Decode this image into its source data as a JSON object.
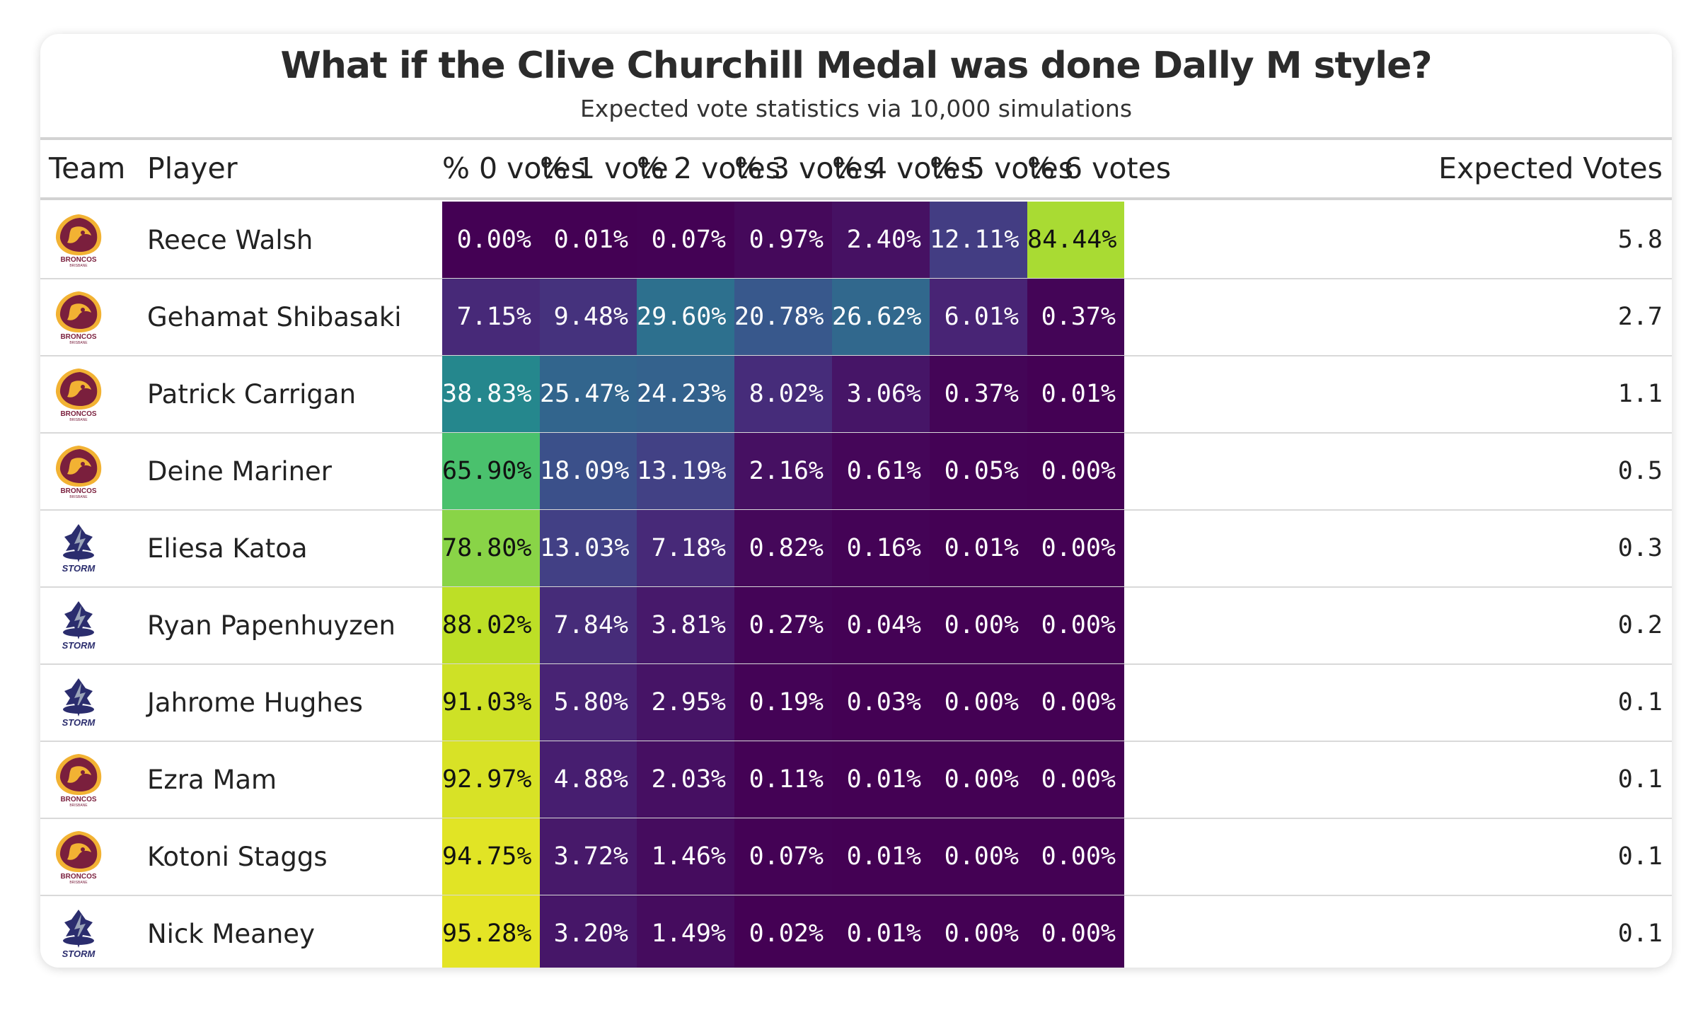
{
  "title": "What if the Clive Churchill Medal was done Dally M style?",
  "subtitle": "Expected vote statistics via 10,000 simulations",
  "colors": {
    "card_bg": "#ffffff",
    "rule": "#d2d2d2",
    "broncos_maroon": "#7a1f3d",
    "broncos_gold": "#f2b233",
    "storm_navy": "#2b2d6e"
  },
  "chart_data": {
    "type": "table",
    "title": "What if the Clive Churchill Medal was done Dally M style?",
    "subtitle": "Expected vote statistics via 10,000 simulations",
    "colormap": "viridis",
    "columns": [
      "Team",
      "Player",
      "% 0 votes",
      "% 1 vote",
      "% 2 votes",
      "% 3 votes",
      "% 4 votes",
      "% 5 votes",
      "% 6 votes",
      "Expected Votes"
    ],
    "rows": [
      {
        "team": "BRONCOS",
        "team_sub": "BRISBANE",
        "team_icon": "broncos-logo-icon",
        "player": "Reece Walsh",
        "pct": [
          "0.00%",
          "0.01%",
          "0.07%",
          "0.97%",
          "2.40%",
          "12.11%",
          "84.44%"
        ],
        "vals": [
          0.0,
          0.01,
          0.07,
          0.97,
          2.4,
          12.11,
          84.44
        ],
        "expected": "5.8"
      },
      {
        "team": "BRONCOS",
        "team_sub": "BRISBANE",
        "team_icon": "broncos-logo-icon",
        "player": "Gehamat Shibasaki",
        "pct": [
          "7.15%",
          "9.48%",
          "29.60%",
          "20.78%",
          "26.62%",
          "6.01%",
          "0.37%"
        ],
        "vals": [
          7.15,
          9.48,
          29.6,
          20.78,
          26.62,
          6.01,
          0.37
        ],
        "expected": "2.7"
      },
      {
        "team": "BRONCOS",
        "team_sub": "BRISBANE",
        "team_icon": "broncos-logo-icon",
        "player": "Patrick Carrigan",
        "pct": [
          "38.83%",
          "25.47%",
          "24.23%",
          "8.02%",
          "3.06%",
          "0.37%",
          "0.01%"
        ],
        "vals": [
          38.83,
          25.47,
          24.23,
          8.02,
          3.06,
          0.37,
          0.01
        ],
        "expected": "1.1"
      },
      {
        "team": "BRONCOS",
        "team_sub": "BRISBANE",
        "team_icon": "broncos-logo-icon",
        "player": "Deine Mariner",
        "pct": [
          "65.90%",
          "18.09%",
          "13.19%",
          "2.16%",
          "0.61%",
          "0.05%",
          "0.00%"
        ],
        "vals": [
          65.9,
          18.09,
          13.19,
          2.16,
          0.61,
          0.05,
          0.0
        ],
        "expected": "0.5"
      },
      {
        "team": "STORM",
        "team_sub": "",
        "team_icon": "storm-logo-icon",
        "player": "Eliesa Katoa",
        "pct": [
          "78.80%",
          "13.03%",
          "7.18%",
          "0.82%",
          "0.16%",
          "0.01%",
          "0.00%"
        ],
        "vals": [
          78.8,
          13.03,
          7.18,
          0.82,
          0.16,
          0.01,
          0.0
        ],
        "expected": "0.3"
      },
      {
        "team": "STORM",
        "team_sub": "",
        "team_icon": "storm-logo-icon",
        "player": "Ryan Papenhuyzen",
        "pct": [
          "88.02%",
          "7.84%",
          "3.81%",
          "0.27%",
          "0.04%",
          "0.00%",
          "0.00%"
        ],
        "vals": [
          88.02,
          7.84,
          3.81,
          0.27,
          0.04,
          0.0,
          0.0
        ],
        "expected": "0.2"
      },
      {
        "team": "STORM",
        "team_sub": "",
        "team_icon": "storm-logo-icon",
        "player": "Jahrome Hughes",
        "pct": [
          "91.03%",
          "5.80%",
          "2.95%",
          "0.19%",
          "0.03%",
          "0.00%",
          "0.00%"
        ],
        "vals": [
          91.03,
          5.8,
          2.95,
          0.19,
          0.03,
          0.0,
          0.0
        ],
        "expected": "0.1"
      },
      {
        "team": "BRONCOS",
        "team_sub": "BRISBANE",
        "team_icon": "broncos-logo-icon",
        "player": "Ezra Mam",
        "pct": [
          "92.97%",
          "4.88%",
          "2.03%",
          "0.11%",
          "0.01%",
          "0.00%",
          "0.00%"
        ],
        "vals": [
          92.97,
          4.88,
          2.03,
          0.11,
          0.01,
          0.0,
          0.0
        ],
        "expected": "0.1"
      },
      {
        "team": "BRONCOS",
        "team_sub": "BRISBANE",
        "team_icon": "broncos-logo-icon",
        "player": "Kotoni Staggs",
        "pct": [
          "94.75%",
          "3.72%",
          "1.46%",
          "0.07%",
          "0.01%",
          "0.00%",
          "0.00%"
        ],
        "vals": [
          94.75,
          3.72,
          1.46,
          0.07,
          0.01,
          0.0,
          0.0
        ],
        "expected": "0.1"
      },
      {
        "team": "STORM",
        "team_sub": "",
        "team_icon": "storm-logo-icon",
        "player": "Nick Meaney",
        "pct": [
          "95.28%",
          "3.20%",
          "1.49%",
          "0.02%",
          "0.01%",
          "0.00%",
          "0.00%"
        ],
        "vals": [
          95.28,
          3.2,
          1.49,
          0.02,
          0.01,
          0.0,
          0.0
        ],
        "expected": "0.1"
      }
    ]
  }
}
